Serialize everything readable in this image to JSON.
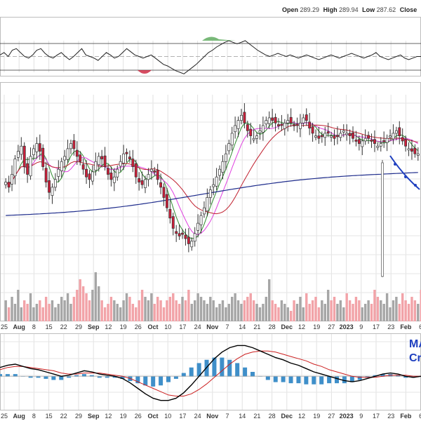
{
  "header": {
    "open_label": "Open",
    "open_value": "289.29",
    "high_label": "High",
    "high_value": "289.94",
    "low_label": "Low",
    "low_value": "287.62",
    "close_label": "Close"
  },
  "annotation": {
    "line1": "MA",
    "line2": "Cr"
  },
  "colors": {
    "up_candle": "#ffffff",
    "down_candle": "#cc1f3a",
    "ma_short": "#2e8b2e",
    "ma_mid": "#e040e0",
    "ma_long": "#c0202f",
    "ma_200": "#1f2d8c",
    "volume_up": "#a6a6a6",
    "volume_down": "#f2a3a8",
    "macd_line": "#000000",
    "signal_line": "#cc1f1f",
    "histogram": "#3f8fc9",
    "trend_arrow": "#1e3fbf"
  },
  "chart_data": {
    "type": "candlestick",
    "x_ticks": [
      "25",
      "Aug",
      "8",
      "15",
      "22",
      "29",
      "Sep",
      "12",
      "19",
      "26",
      "Oct",
      "10",
      "17",
      "24",
      "Nov",
      "7",
      "14",
      "21",
      "28",
      "Dec",
      "12",
      "19",
      "27",
      "2023",
      "9",
      "17",
      "23",
      "Feb",
      "6"
    ],
    "bold_ticks": [
      "Aug",
      "Sep",
      "Oct",
      "Nov",
      "Dec",
      "2023",
      "Feb"
    ],
    "price_range": [
      232,
      312
    ],
    "price": [
      278,
      276,
      281,
      287,
      290,
      292,
      284,
      281,
      288,
      291,
      293,
      290,
      284,
      278,
      274,
      276,
      279,
      283,
      286,
      288,
      291,
      293,
      291,
      288,
      286,
      283,
      280,
      279,
      282,
      286,
      288,
      287,
      284,
      281,
      279,
      280,
      283,
      286,
      289,
      289,
      287,
      284,
      280,
      278,
      277,
      279,
      281,
      283,
      282,
      279,
      276,
      272,
      268,
      264,
      260,
      258,
      257,
      258,
      256,
      254,
      255,
      258,
      262,
      265,
      268,
      272,
      275,
      277,
      280,
      283,
      286,
      289,
      293,
      297,
      300,
      302,
      304,
      301,
      298,
      296,
      295,
      296,
      298,
      300,
      302,
      303,
      302,
      301,
      300,
      300,
      301,
      302,
      301,
      300,
      300,
      301,
      303,
      302,
      299,
      297,
      296,
      295,
      296,
      297,
      297,
      296,
      295,
      296,
      297,
      298,
      297,
      296,
      295,
      294,
      293,
      294,
      295,
      295,
      294,
      293,
      292,
      293,
      294,
      295,
      296,
      297,
      298,
      296,
      294,
      292,
      291,
      290,
      289,
      289
    ],
    "rsi_range": [
      0,
      100
    ],
    "rsi": [
      52,
      55,
      50,
      58,
      60,
      55,
      50,
      48,
      52,
      58,
      60,
      54,
      50,
      48,
      52,
      55,
      50,
      46,
      50,
      55,
      60,
      52,
      50,
      48,
      45,
      50,
      55,
      52,
      48,
      50,
      55,
      60,
      56,
      52,
      50,
      48,
      50,
      52,
      48,
      44,
      40,
      38,
      35,
      32,
      30,
      28,
      32,
      36,
      40,
      45,
      50,
      55,
      58,
      62,
      65,
      68,
      70,
      68,
      66,
      68,
      70,
      66,
      62,
      58,
      55,
      52,
      50,
      52,
      54,
      52,
      50,
      52,
      50,
      48,
      50,
      52,
      50,
      48,
      46,
      48,
      50,
      52,
      50,
      48,
      50,
      52,
      54,
      52,
      50,
      48,
      50,
      52,
      55,
      50,
      48,
      46,
      48,
      50,
      52,
      48,
      46,
      48,
      50,
      50
    ],
    "macd_range": [
      -2.6,
      3.4
    ],
    "macd": [
      0.8,
      1.0,
      1.1,
      0.9,
      0.7,
      0.6,
      0.4,
      0.2,
      0.0,
      0.1,
      0.3,
      0.5,
      0.4,
      0.2,
      0.1,
      0.0,
      -0.2,
      -0.6,
      -1.1,
      -1.6,
      -2.0,
      -2.2,
      -2.2,
      -2.0,
      -1.5,
      -0.8,
      0.0,
      0.8,
      1.6,
      2.2,
      2.6,
      2.8,
      2.8,
      2.6,
      2.3,
      2.0,
      1.7,
      1.5,
      1.2,
      1.0,
      0.7,
      0.4,
      0.2,
      0.0,
      -0.2,
      -0.4,
      -0.5,
      -0.4,
      -0.2,
      0.0,
      0.2,
      0.3,
      0.2,
      0.0,
      -0.1,
      0.0
    ],
    "signal": [
      0.6,
      0.8,
      0.9,
      0.9,
      0.8,
      0.7,
      0.6,
      0.5,
      0.3,
      0.2,
      0.2,
      0.3,
      0.3,
      0.3,
      0.2,
      0.1,
      0.0,
      -0.2,
      -0.5,
      -0.8,
      -1.1,
      -1.4,
      -1.7,
      -1.8,
      -1.8,
      -1.6,
      -1.2,
      -0.7,
      -0.1,
      0.5,
      1.1,
      1.6,
      2.0,
      2.2,
      2.3,
      2.3,
      2.2,
      2.0,
      1.8,
      1.6,
      1.4,
      1.1,
      0.9,
      0.6,
      0.4,
      0.2,
      0.0,
      -0.1,
      -0.1,
      -0.1,
      0.0,
      0.1,
      0.1,
      0.1,
      0.0,
      0.0
    ],
    "volume": [
      6,
      4,
      7,
      5,
      9,
      4,
      6,
      5,
      8,
      4,
      5,
      6,
      4,
      7,
      5,
      6,
      4,
      5,
      7,
      6,
      8,
      5,
      7,
      9,
      12,
      10,
      8,
      6,
      9,
      14,
      10,
      6,
      4,
      5,
      7,
      6,
      5,
      4,
      6,
      8,
      7,
      5,
      4,
      6,
      9,
      7,
      6,
      8,
      5,
      7,
      6,
      4,
      6,
      7,
      8,
      6,
      5,
      7,
      6,
      9,
      5,
      6,
      8,
      7,
      6,
      5,
      7,
      6,
      4,
      5,
      6,
      4,
      5,
      7,
      8,
      6,
      5,
      6,
      7,
      8,
      6,
      5,
      4,
      5,
      7,
      12,
      6,
      5,
      4,
      6,
      5,
      4,
      3,
      6,
      5,
      7,
      4,
      8,
      5,
      6,
      7,
      4,
      6,
      5,
      9,
      6,
      7,
      5,
      6,
      4,
      8,
      6,
      5,
      7,
      6,
      4,
      5,
      6,
      5,
      9,
      7,
      6,
      5,
      8,
      4,
      6,
      7,
      5,
      8,
      6,
      5,
      7,
      6,
      5,
      9,
      7
    ]
  }
}
